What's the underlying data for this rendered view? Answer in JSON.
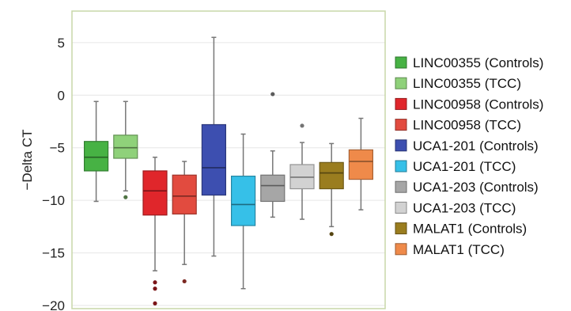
{
  "chart_data": {
    "type": "box",
    "ylabel": "−Delta CT",
    "ylim": [
      -20.3,
      8
    ],
    "yticks": [
      5,
      0,
      -5,
      -10,
      -15,
      -20
    ],
    "ytick_labels": [
      "5",
      "0",
      "−5",
      "−10",
      "−15",
      "−20"
    ],
    "grid": "horizontal",
    "legend_position": "right",
    "series": [
      {
        "name": "LINC00355 (Controls)",
        "color": "#47b244",
        "whisker_low": -10.1,
        "q1": -7.2,
        "median": -5.9,
        "q3": -4.4,
        "whisker_high": -0.6,
        "outliers": []
      },
      {
        "name": "LINC00355 (TCC)",
        "color": "#8fd17a",
        "whisker_low": -9.1,
        "q1": -6.0,
        "median": -5.0,
        "q3": -3.8,
        "whisker_high": -0.6,
        "outliers": [
          -9.7
        ]
      },
      {
        "name": "LINC00958 (Controls)",
        "color": "#e0262b",
        "whisker_low": -16.7,
        "q1": -11.4,
        "median": -9.1,
        "q3": -7.2,
        "whisker_high": -5.9,
        "outliers": [
          -17.8,
          -18.4,
          -19.8
        ]
      },
      {
        "name": "LINC00958 (TCC)",
        "color": "#e24b3f",
        "whisker_low": -16.1,
        "q1": -11.3,
        "median": -9.6,
        "q3": -7.6,
        "whisker_high": -6.3,
        "outliers": [
          -17.7
        ]
      },
      {
        "name": "UCA1-201 (Controls)",
        "color": "#3d4fb0",
        "whisker_low": -15.3,
        "q1": -9.5,
        "median": -6.9,
        "q3": -2.8,
        "whisker_high": 5.5,
        "outliers": []
      },
      {
        "name": "UCA1-201 (TCC)",
        "color": "#36c0e8",
        "whisker_low": -18.4,
        "q1": -12.4,
        "median": -10.4,
        "q3": -7.7,
        "whisker_high": -3.7,
        "outliers": []
      },
      {
        "name": "UCA1-203 (Controls)",
        "color": "#a6a6a6",
        "whisker_low": -11.6,
        "q1": -10.1,
        "median": -8.6,
        "q3": -7.6,
        "whisker_high": -5.3,
        "outliers": [
          0.1
        ]
      },
      {
        "name": "UCA1-203 (TCC)",
        "color": "#d2d2d2",
        "whisker_low": -11.8,
        "q1": -8.9,
        "median": -7.8,
        "q3": -6.6,
        "whisker_high": -4.5,
        "outliers": [
          -2.9
        ]
      },
      {
        "name": "MALAT1 (Controls)",
        "color": "#9a7d1f",
        "whisker_low": -12.5,
        "q1": -8.9,
        "median": -7.4,
        "q3": -6.4,
        "whisker_high": -4.6,
        "outliers": [
          -13.2
        ]
      },
      {
        "name": "MALAT1 (TCC)",
        "color": "#ef8a4a",
        "whisker_low": -10.9,
        "q1": -8.0,
        "median": -6.3,
        "q3": -5.2,
        "whisker_high": -2.2,
        "outliers": []
      }
    ]
  }
}
